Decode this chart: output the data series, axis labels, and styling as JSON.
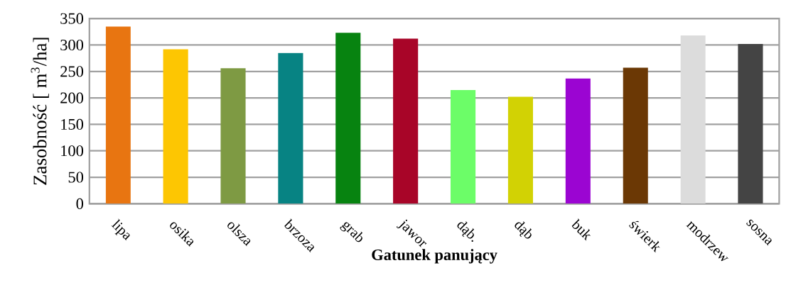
{
  "chart_data": {
    "type": "bar",
    "xlabel": "Gatunek panujący",
    "ylabel": "Zasobność [ m$^{3}$/ha]",
    "categories": [
      "lipa",
      "osika",
      "olsza",
      "brzoza",
      "grab",
      "jawor",
      "dąb.",
      "dąb",
      "buk",
      "świerk",
      "modrzew",
      "sosna"
    ],
    "values": [
      335,
      292,
      256,
      285,
      323,
      312,
      215,
      202,
      237,
      257,
      318,
      302
    ],
    "colors": [
      "#e87511",
      "#fdc602",
      "#7e9a43",
      "#078383",
      "#078310",
      "#a80528",
      "#6cfd68",
      "#d2d204",
      "#9b05d2",
      "#6b3805",
      "#dcdcdc",
      "#444444"
    ],
    "ylim": [
      0,
      350
    ],
    "yticks": [
      0,
      50,
      100,
      150,
      200,
      250,
      300,
      350
    ],
    "grid": "y"
  }
}
